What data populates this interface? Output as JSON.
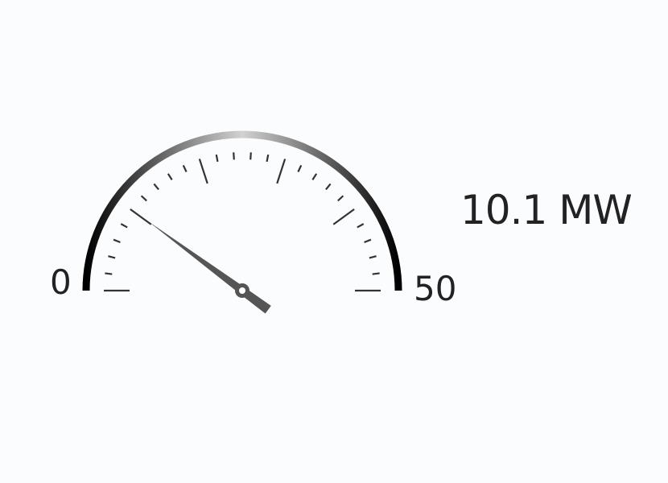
{
  "gauge": {
    "min_label": "0",
    "max_label": "50",
    "min": 0,
    "max": 50,
    "value": 10.1,
    "readout_value": "10.1",
    "readout_unit": "MW",
    "major_step": 10,
    "minor_step": 2,
    "colors": {
      "arc_dark": "#000000",
      "arc_light": "#d4d4d4",
      "tick": "#333333",
      "needle": "#555555",
      "text": "#222222"
    }
  }
}
